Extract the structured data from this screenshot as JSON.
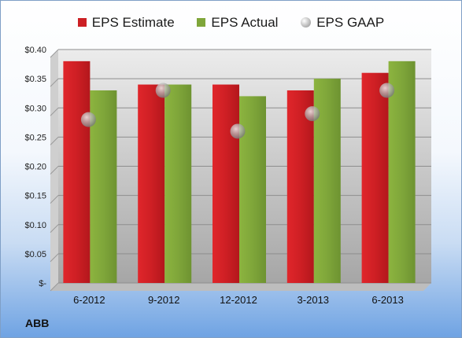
{
  "company": "ABB",
  "colors": {
    "estimate": "#cc1f24",
    "actual": "#7fa63a",
    "gaap": "#b9b9b9"
  },
  "chart_data": {
    "type": "bar",
    "categories": [
      "6-2012",
      "9-2012",
      "12-2012",
      "3-2013",
      "6-2013"
    ],
    "series": [
      {
        "name": "EPS Estimate",
        "type": "bar",
        "values": [
          0.38,
          0.34,
          0.34,
          0.33,
          0.36
        ]
      },
      {
        "name": "EPS Actual",
        "type": "bar",
        "values": [
          0.33,
          0.34,
          0.32,
          0.35,
          0.38
        ]
      },
      {
        "name": "EPS GAAP",
        "type": "scatter",
        "values": [
          0.28,
          0.33,
          0.26,
          0.29,
          0.33
        ]
      }
    ],
    "ylim": [
      0,
      0.4
    ],
    "yticks": [
      0,
      0.05,
      0.1,
      0.15,
      0.2,
      0.25,
      0.3,
      0.35,
      0.4
    ],
    "ytick_labels": [
      "$-",
      "$0.05",
      "$0.10",
      "$0.15",
      "$0.20",
      "$0.25",
      "$0.30",
      "$0.35",
      "$0.40"
    ],
    "grid": true,
    "legend": "top"
  }
}
